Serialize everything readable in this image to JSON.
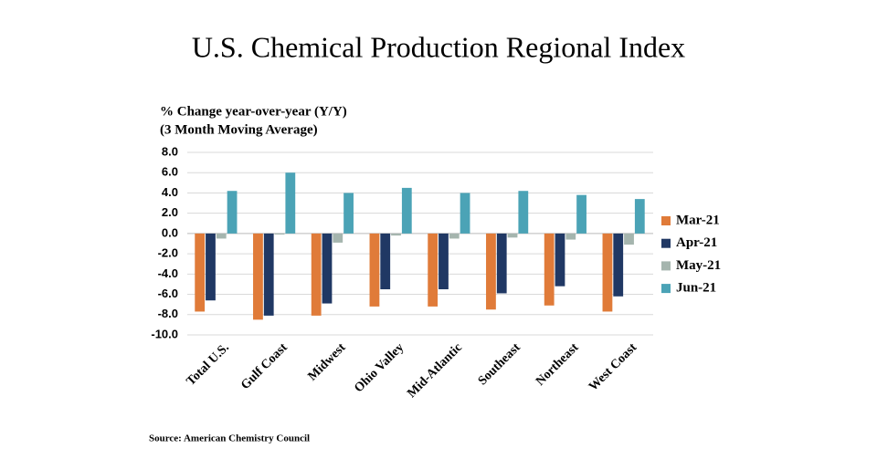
{
  "chart_data": {
    "type": "bar",
    "title": "U.S. Chemical Production Regional Index",
    "y_axis_label": [
      "% Change year-over-year (Y/Y)",
      "(3 Month Moving Average)"
    ],
    "source": "Source: American Chemistry Council",
    "categories": [
      "Total U.S.",
      "Gulf Coast",
      "Midwest",
      "Ohio Valley",
      "Mid-Atlantic",
      "Southeast",
      "Northeast",
      "West Coast"
    ],
    "series": [
      {
        "name": "Mar-21",
        "color": "#e07b39",
        "values": [
          -7.7,
          -8.5,
          -8.1,
          -7.2,
          -7.2,
          -7.5,
          -7.1,
          -7.7
        ]
      },
      {
        "name": "Apr-21",
        "color": "#203864",
        "values": [
          -6.6,
          -8.1,
          -6.9,
          -5.5,
          -5.5,
          -5.9,
          -5.2,
          -6.2
        ]
      },
      {
        "name": "May-21",
        "color": "#a5b5ae",
        "values": [
          -0.5,
          -0.1,
          -0.9,
          -0.2,
          -0.5,
          -0.4,
          -0.6,
          -1.1
        ]
      },
      {
        "name": "Jun-21",
        "color": "#4ba3b6",
        "values": [
          4.2,
          6.0,
          4.0,
          4.5,
          4.0,
          4.2,
          3.8,
          3.4
        ]
      }
    ],
    "ylim": [
      -10,
      8
    ],
    "yticks": [
      {
        "value": 8,
        "label": "8.0"
      },
      {
        "value": 6,
        "label": "6.0"
      },
      {
        "value": 4,
        "label": "4.0"
      },
      {
        "value": 2,
        "label": "2.0"
      },
      {
        "value": 0,
        "label": "0.0"
      },
      {
        "value": -2,
        "label": "-2.0"
      },
      {
        "value": -4,
        "label": "-4.0"
      },
      {
        "value": -6,
        "label": "-6.0"
      },
      {
        "value": -8,
        "label": "-8.0"
      },
      {
        "value": -10,
        "label": "-10.0"
      }
    ],
    "grid": true,
    "legend": "right"
  }
}
